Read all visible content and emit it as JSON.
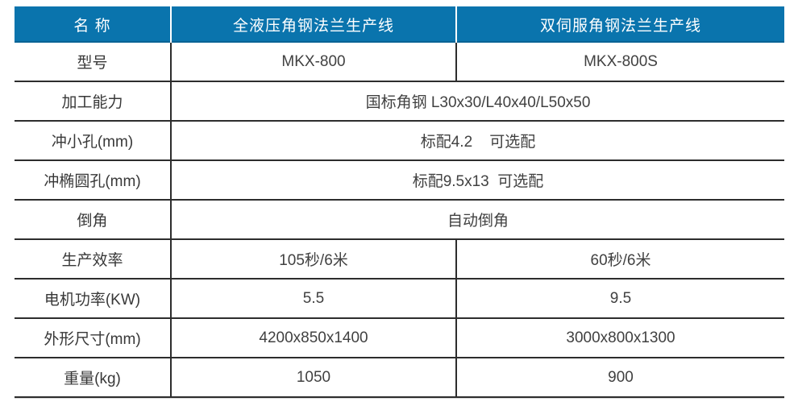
{
  "colors": {
    "header_bg": "#0a74ad",
    "header_text": "#ffffff",
    "line": "#2d2d2d",
    "body_text": "#414141"
  },
  "table": {
    "header": {
      "name": "名 称",
      "product1": "全液压角钢法兰生产线",
      "product2": "双伺服角钢法兰生产线"
    },
    "rows": [
      {
        "label": "型号",
        "col1": "MKX-800",
        "col2": "MKX-800S"
      },
      {
        "label": "加工能力",
        "span": "国标角钢 L30x30/L40x40/L50x50"
      },
      {
        "label": "冲小孔(mm)",
        "span": "标配4.2    可选配"
      },
      {
        "label": "冲椭圆孔(mm)",
        "span": "标配9.5x13  可选配"
      },
      {
        "label": "倒角",
        "span": "自动倒角"
      },
      {
        "label": "生产效率",
        "col1": "105秒/6米",
        "col2": "60秒/6米"
      },
      {
        "label": "电机功率(KW)",
        "col1": "5.5",
        "col2": "9.5"
      },
      {
        "label": "外形尺寸(mm)",
        "col1": "4200x850x1400",
        "col2": "3000x800x1300"
      },
      {
        "label": "重量(kg)",
        "col1": "1050",
        "col2": "900"
      }
    ]
  }
}
